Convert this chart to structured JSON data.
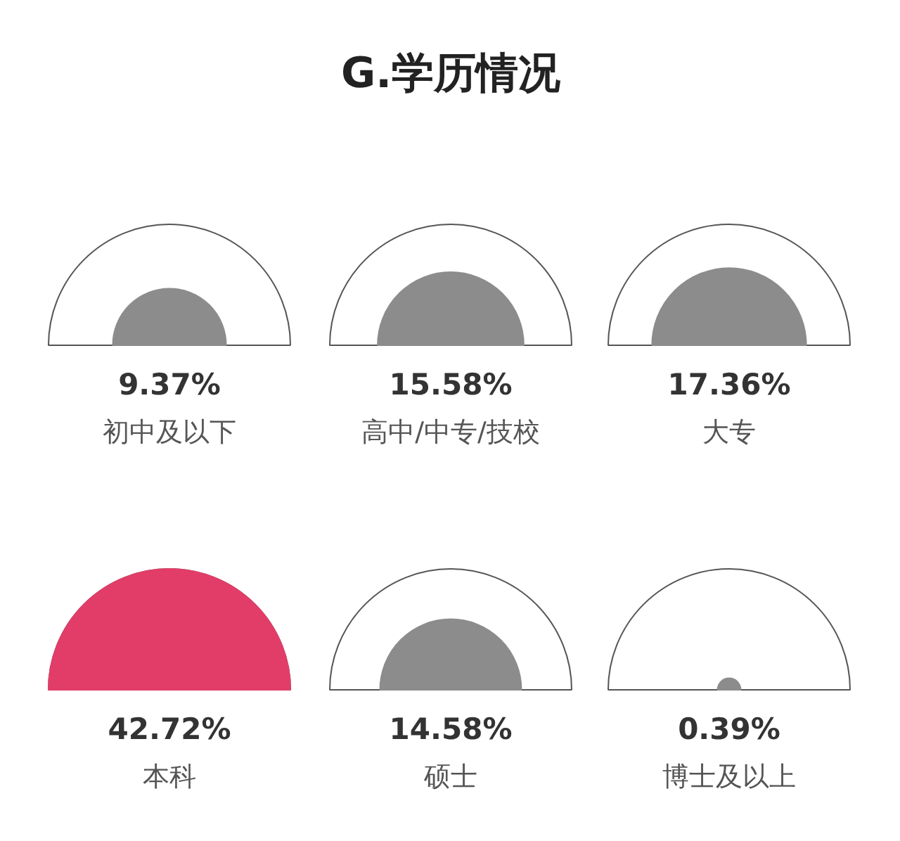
{
  "chart_data": {
    "type": "other",
    "title": "G.学历情况",
    "categories": [
      "初中及以下",
      "高中/中专/技校",
      "大专",
      "本科",
      "硕士",
      "博士及以上"
    ],
    "values": [
      9.37,
      15.58,
      17.36,
      42.72,
      14.58,
      0.39
    ],
    "value_labels": [
      "9.37%",
      "15.58%",
      "17.36%",
      "42.72%",
      "14.58%",
      "0.39%"
    ],
    "colors": [
      "#8c8c8c",
      "#8c8c8c",
      "#8c8c8c",
      "#e23d68",
      "#8c8c8c",
      "#8c8c8c"
    ]
  }
}
